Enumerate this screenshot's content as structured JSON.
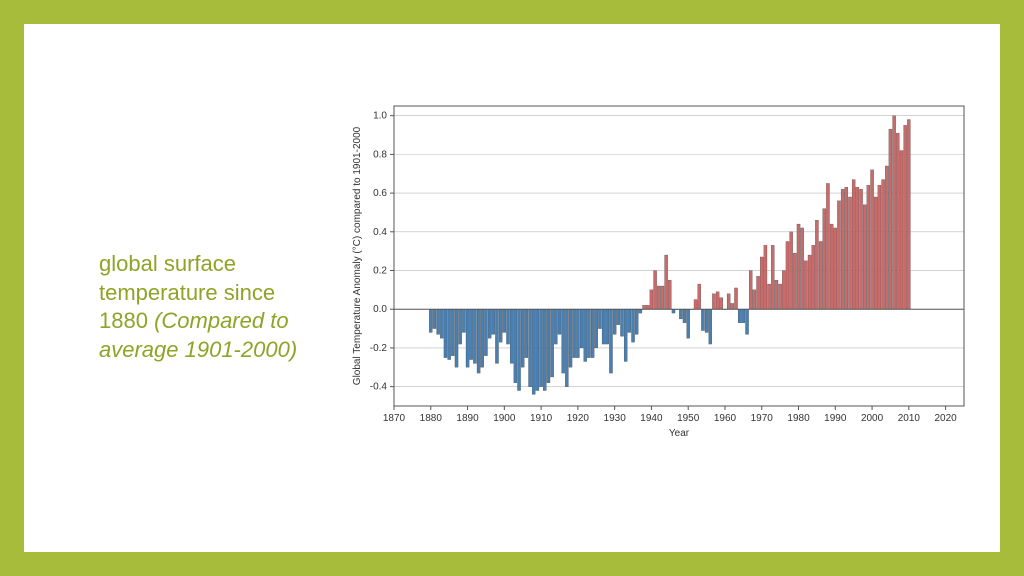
{
  "slide": {
    "border_color": "#a6bc3a",
    "background_color": "#ffffff"
  },
  "left_text": {
    "line1": "global surface",
    "line2": "temperature since",
    "line3": "1880 ",
    "line4_italic": "(Compared to average 1901-2000)",
    "color": "#8ea426",
    "font_size": 22
  },
  "chart": {
    "type": "bar",
    "xlabel": "Year",
    "ylabel": "Global Temperature Anomaly (°C) compared to 1901-2000",
    "label_fontsize": 10,
    "tick_fontsize": 10,
    "background_color": "#ffffff",
    "grid_color": "#b8b8b8",
    "axis_color": "#555555",
    "positive_color": "#c76b6b",
    "negative_color": "#4a7fb0",
    "bar_stroke": "#333333",
    "xlim": [
      1870,
      2025
    ],
    "ylim": [
      -0.5,
      1.05
    ],
    "ytick_step": 0.2,
    "ytick_start": -0.4,
    "ytick_end": 1.0,
    "xtick_step": 10,
    "xtick_start": 1870,
    "xtick_end": 2020,
    "bar_width": 0.85,
    "start_year": 1880,
    "values": [
      -0.12,
      -0.1,
      -0.13,
      -0.15,
      -0.25,
      -0.26,
      -0.24,
      -0.3,
      -0.18,
      -0.12,
      -0.3,
      -0.26,
      -0.28,
      -0.33,
      -0.3,
      -0.24,
      -0.15,
      -0.13,
      -0.28,
      -0.17,
      -0.12,
      -0.18,
      -0.28,
      -0.38,
      -0.42,
      -0.3,
      -0.25,
      -0.4,
      -0.44,
      -0.42,
      -0.4,
      -0.42,
      -0.38,
      -0.35,
      -0.18,
      -0.13,
      -0.33,
      -0.4,
      -0.3,
      -0.25,
      -0.25,
      -0.2,
      -0.27,
      -0.25,
      -0.25,
      -0.2,
      -0.1,
      -0.18,
      -0.18,
      -0.33,
      -0.13,
      -0.08,
      -0.14,
      -0.27,
      -0.12,
      -0.17,
      -0.13,
      -0.02,
      0.02,
      0.02,
      0.1,
      0.2,
      0.12,
      0.12,
      0.28,
      0.15,
      -0.02,
      0.0,
      -0.05,
      -0.07,
      -0.15,
      0.0,
      0.05,
      0.13,
      -0.11,
      -0.12,
      -0.18,
      0.08,
      0.09,
      0.06,
      0.0,
      0.08,
      0.03,
      0.11,
      -0.07,
      -0.07,
      -0.13,
      0.2,
      0.1,
      0.17,
      0.27,
      0.33,
      0.13,
      0.33,
      0.15,
      0.13,
      0.2,
      0.35,
      0.4,
      0.29,
      0.44,
      0.42,
      0.25,
      0.28,
      0.33,
      0.46,
      0.35,
      0.52,
      0.65,
      0.44,
      0.42,
      0.56,
      0.62,
      0.63,
      0.58,
      0.67,
      0.63,
      0.62,
      0.54,
      0.64,
      0.72,
      0.58,
      0.64,
      0.67,
      0.74,
      0.93,
      1.0,
      0.91,
      0.82,
      0.95,
      0.98
    ]
  }
}
